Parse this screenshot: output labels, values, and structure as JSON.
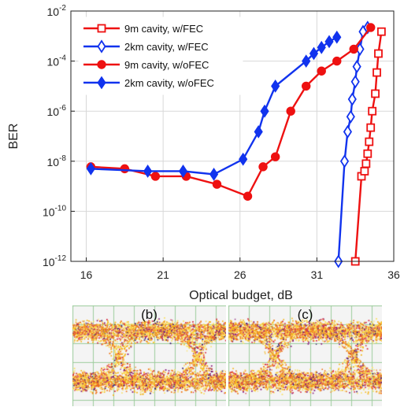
{
  "chart_data": {
    "type": "line",
    "xlabel": "Optical budget, dB",
    "ylabel": "BER",
    "yscale": "log",
    "xlim": [
      15,
      36
    ],
    "ylim": [
      1e-12,
      0.01
    ],
    "x_ticks": [
      16,
      21,
      26,
      31,
      36
    ],
    "y_ticks": [
      {
        "value": 1e-12,
        "base": "10",
        "exp": "-12"
      },
      {
        "value": 1e-10,
        "base": "10",
        "exp": "-10"
      },
      {
        "value": 1e-08,
        "base": "10",
        "exp": "-8"
      },
      {
        "value": 1e-06,
        "base": "10",
        "exp": "-6"
      },
      {
        "value": 0.0001,
        "base": "10",
        "exp": "-4"
      },
      {
        "value": 0.01,
        "base": "10",
        "exp": "-2"
      }
    ],
    "grid": true,
    "legend_position": "top-left",
    "series": [
      {
        "name": "9m cavity, w/FEC",
        "color": "#ee1111",
        "marker": "open-square",
        "points": [
          [
            33.5,
            1e-12
          ],
          [
            33.9,
            2.5e-09
          ],
          [
            34.1,
            4e-09
          ],
          [
            34.2,
            8e-09
          ],
          [
            34.3,
            2e-08
          ],
          [
            34.4,
            6e-08
          ],
          [
            34.5,
            2.2e-07
          ],
          [
            34.6,
            1e-06
          ],
          [
            34.8,
            5e-06
          ],
          [
            34.9,
            3.5e-05
          ],
          [
            35.0,
            0.0002
          ],
          [
            35.2,
            0.0015
          ]
        ]
      },
      {
        "name": "2km cavity, w/FEC",
        "color": "#1133ee",
        "marker": "open-diamond",
        "points": [
          [
            32.4,
            1e-12
          ],
          [
            32.8,
            1e-08
          ],
          [
            33.0,
            1.5e-07
          ],
          [
            33.2,
            6e-07
          ],
          [
            33.3,
            3e-06
          ],
          [
            33.5,
            1.5e-05
          ],
          [
            33.6,
            6e-05
          ],
          [
            33.8,
            0.0003
          ],
          [
            34.0,
            0.0015
          ],
          [
            34.3,
            0.0022
          ]
        ]
      },
      {
        "name": "9m cavity, w/oFEC",
        "color": "#ee1111",
        "marker": "filled-circle",
        "points": [
          [
            16.3,
            6e-09
          ],
          [
            18.5,
            5e-09
          ],
          [
            20.5,
            2.5e-09
          ],
          [
            22.5,
            2.5e-09
          ],
          [
            24.5,
            1.2e-09
          ],
          [
            26.5,
            4e-10
          ],
          [
            27.5,
            6e-09
          ],
          [
            28.3,
            1.5e-08
          ],
          [
            29.3,
            1e-06
          ],
          [
            30.3,
            1e-05
          ],
          [
            31.3,
            4e-05
          ],
          [
            32.3,
            0.0001
          ],
          [
            33.4,
            0.0003
          ],
          [
            34.5,
            0.0022
          ]
        ]
      },
      {
        "name": "2km cavity, w/oFEC",
        "color": "#1133ee",
        "marker": "filled-diamond",
        "points": [
          [
            16.3,
            5e-09
          ],
          [
            20.0,
            4e-09
          ],
          [
            22.3,
            4e-09
          ],
          [
            24.3,
            3e-09
          ],
          [
            26.2,
            1.2e-08
          ],
          [
            27.2,
            1.5e-07
          ],
          [
            27.6,
            1e-06
          ],
          [
            28.3,
            1e-05
          ],
          [
            30.3,
            0.0001
          ],
          [
            30.8,
            0.0002
          ],
          [
            31.3,
            0.00035
          ],
          [
            31.8,
            0.0006
          ],
          [
            32.3,
            0.0009
          ]
        ]
      }
    ]
  },
  "eye_diagrams": [
    {
      "label": "(b)"
    },
    {
      "label": "(c)"
    }
  ]
}
